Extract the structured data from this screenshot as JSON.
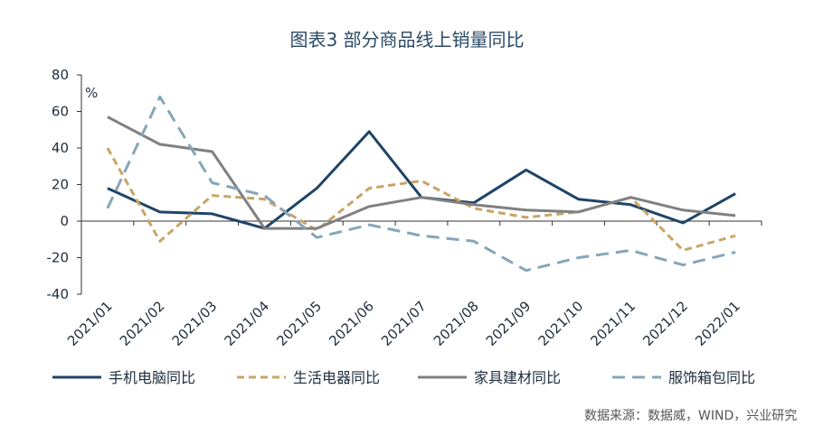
{
  "title": "图表3  部分商品线上销量同比",
  "source": "数据来源：数据威，WIND，兴业研究",
  "chart_data": {
    "type": "line",
    "title": "图表3  部分商品线上销量同比",
    "ylabel": "%",
    "ylim": [
      -40,
      80
    ],
    "yticks": [
      80,
      60,
      40,
      20,
      0,
      -20,
      -40
    ],
    "grid": false,
    "legend": "bottom",
    "categories": [
      "2021/01",
      "2021/02",
      "2021/03",
      "2021/04",
      "2021/05",
      "2021/06",
      "2021/07",
      "2021/08",
      "2021/09",
      "2021/10",
      "2021/11",
      "2021/12",
      "2022/01"
    ],
    "series": [
      {
        "name": "手机电脑同比",
        "color": "#1f4466",
        "dash": "solid",
        "values": [
          18,
          5,
          4,
          -4,
          18,
          49,
          13,
          10,
          28,
          12,
          9,
          -1,
          15
        ]
      },
      {
        "name": "生活电器同比",
        "color": "#c9a466",
        "dash": "dashed",
        "values": [
          40,
          -11,
          14,
          12,
          -5,
          18,
          22,
          7,
          2,
          5,
          13,
          -16,
          -8
        ]
      },
      {
        "name": "家具建材同比",
        "color": "#808080",
        "dash": "solid",
        "values": [
          57,
          42,
          38,
          -4,
          -4,
          8,
          13,
          9,
          6,
          5,
          13,
          6,
          3
        ]
      },
      {
        "name": "服饰箱包同比",
        "color": "#86a6b8",
        "dash": "dashed",
        "values": [
          7,
          68,
          21,
          14,
          -9,
          -2,
          -8,
          -11,
          -27,
          -20,
          -16,
          -24,
          -17
        ]
      }
    ]
  }
}
